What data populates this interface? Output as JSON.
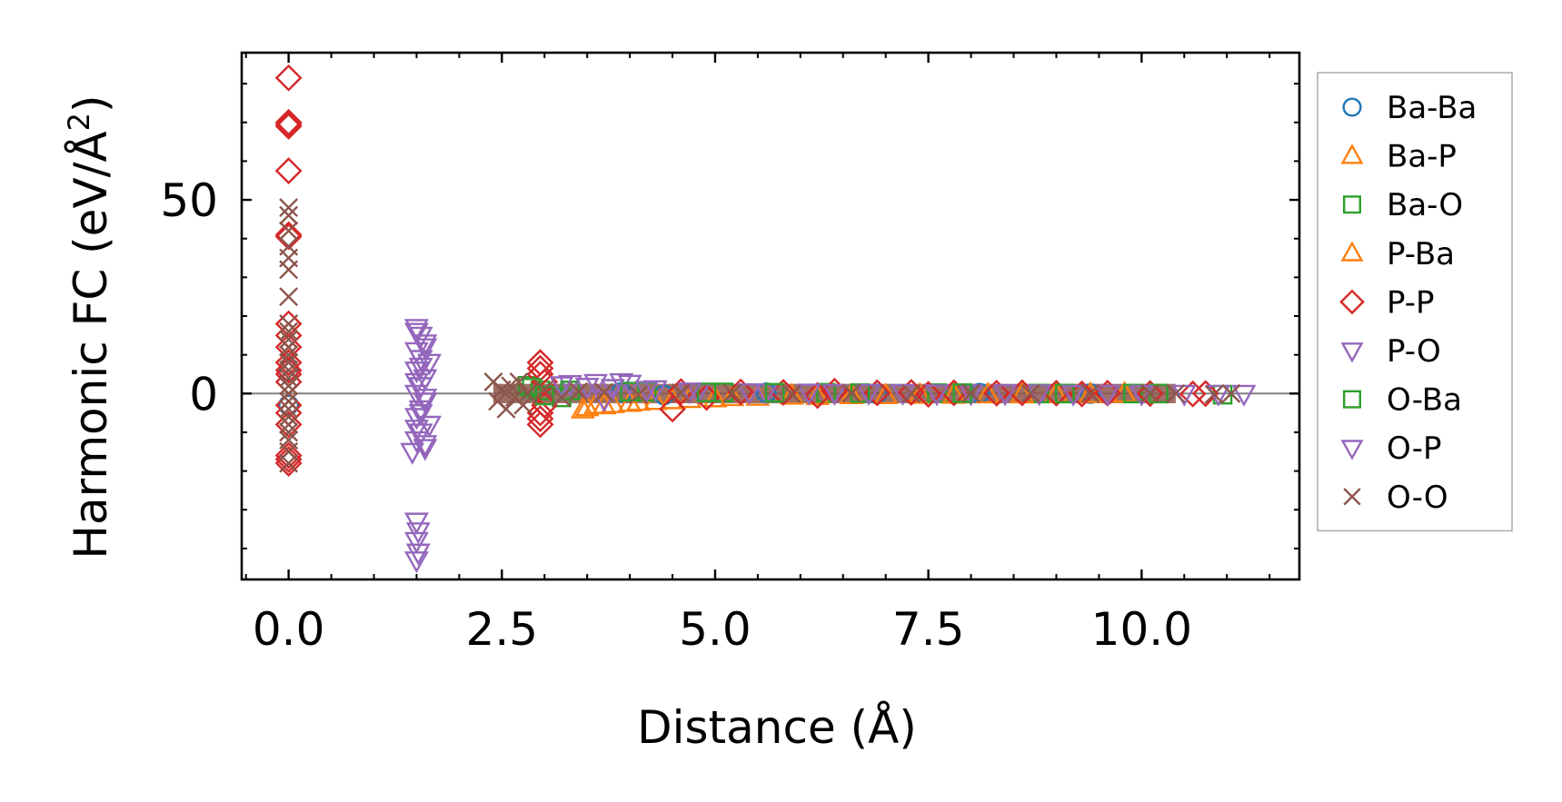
{
  "chart_data": {
    "type": "scatter",
    "title": "",
    "xlabel": "Distance (Å)",
    "ylabel": "Harmonic FC (eV/Å²)",
    "ylabel_main": "Harmonic FC (eV/Å",
    "ylabel_sup": "2",
    "ylabel_end": ")",
    "xlim": [
      -0.55,
      11.85
    ],
    "ylim": [
      -48,
      88
    ],
    "xticks": [
      0.0,
      2.5,
      5.0,
      7.5,
      10.0
    ],
    "xtick_labels": [
      "0.0",
      "2.5",
      "5.0",
      "7.5",
      "10.0"
    ],
    "yticks": [
      0,
      50
    ],
    "ytick_labels": [
      "0",
      "50"
    ],
    "zero_line": 0,
    "grid": false,
    "legend_position": "outside-right",
    "series": [
      {
        "name": "Ba-Ba",
        "marker": "circle",
        "color": "#1f77b4",
        "points": [
          [
            0.0,
            6
          ],
          [
            0.0,
            -3
          ],
          [
            3.9,
            0.3
          ],
          [
            4.4,
            -0.4
          ],
          [
            5.6,
            0.2
          ],
          [
            6.9,
            -0.1
          ],
          [
            8.1,
            0.1
          ],
          [
            9.4,
            0.0
          ]
        ]
      },
      {
        "name": "Ba-P",
        "marker": "triangle-up",
        "color": "#ff7f0e",
        "points": [
          [
            3.45,
            -4.2
          ],
          [
            3.6,
            -3.0
          ],
          [
            3.8,
            -2.8
          ],
          [
            4.0,
            -2.5
          ],
          [
            4.3,
            -2.0
          ],
          [
            4.7,
            -1.5
          ],
          [
            5.2,
            -1.0
          ],
          [
            5.9,
            -0.6
          ],
          [
            6.6,
            -0.5
          ],
          [
            7.4,
            -0.4
          ],
          [
            8.2,
            -0.3
          ],
          [
            9.0,
            -0.2
          ],
          [
            9.8,
            -0.1
          ]
        ]
      },
      {
        "name": "Ba-O",
        "marker": "square",
        "color": "#2ca02c",
        "points": [
          [
            2.8,
            2.0
          ],
          [
            2.95,
            0.8
          ],
          [
            3.2,
            -1.0
          ],
          [
            4.2,
            0.5
          ],
          [
            5.1,
            0.3
          ],
          [
            6.3,
            0.2
          ],
          [
            7.6,
            0.1
          ],
          [
            8.8,
            0.0
          ],
          [
            9.9,
            0.0
          ],
          [
            10.95,
            -0.3
          ]
        ]
      },
      {
        "name": "P-Ba",
        "marker": "triangle-up",
        "color": "#ff7f0e",
        "points": [
          [
            3.5,
            -3.6
          ],
          [
            3.7,
            -3.1
          ],
          [
            4.1,
            -2.2
          ],
          [
            4.5,
            -1.8
          ],
          [
            5.0,
            -1.3
          ],
          [
            5.5,
            -0.9
          ],
          [
            6.2,
            -0.7
          ],
          [
            7.0,
            -0.5
          ],
          [
            7.8,
            -0.4
          ],
          [
            8.6,
            -0.3
          ],
          [
            9.4,
            -0.2
          ]
        ]
      },
      {
        "name": "P-P",
        "marker": "diamond",
        "color": "#d62728",
        "points": [
          [
            0.0,
            81.5
          ],
          [
            0.0,
            70
          ],
          [
            0.0,
            69.5
          ],
          [
            0.0,
            69
          ],
          [
            0.0,
            57.5
          ],
          [
            0.0,
            41
          ],
          [
            0.0,
            40.5
          ],
          [
            0.0,
            18
          ],
          [
            0.0,
            15
          ],
          [
            0.0,
            12
          ],
          [
            0.0,
            8
          ],
          [
            0.0,
            6
          ],
          [
            0.0,
            5
          ],
          [
            0.0,
            3
          ],
          [
            0.0,
            -3
          ],
          [
            0.0,
            -5
          ],
          [
            0.0,
            -8
          ],
          [
            0.0,
            -16
          ],
          [
            0.0,
            -17
          ],
          [
            0.0,
            -18
          ],
          [
            2.95,
            8
          ],
          [
            2.95,
            6.5
          ],
          [
            2.95,
            5
          ],
          [
            2.95,
            -5
          ],
          [
            2.95,
            -6.5
          ],
          [
            2.95,
            -8
          ],
          [
            3.0,
            3
          ],
          [
            3.0,
            -3
          ],
          [
            4.5,
            -4
          ],
          [
            4.6,
            0.5
          ],
          [
            4.9,
            -1
          ],
          [
            5.3,
            0.4
          ],
          [
            5.8,
            0.3
          ],
          [
            6.2,
            -0.5
          ],
          [
            6.4,
            0.6
          ],
          [
            6.9,
            0.2
          ],
          [
            7.3,
            0.3
          ],
          [
            7.5,
            -0.2
          ],
          [
            7.8,
            0.2
          ],
          [
            8.3,
            0.1
          ],
          [
            8.6,
            0.2
          ],
          [
            9.0,
            0.1
          ],
          [
            9.3,
            -0.1
          ],
          [
            9.6,
            0.1
          ],
          [
            10.1,
            0.0
          ],
          [
            10.6,
            -0.1
          ],
          [
            10.75,
            0.0
          ]
        ]
      },
      {
        "name": "P-O",
        "marker": "triangle-down",
        "color": "#9467bd",
        "points": [
          [
            1.5,
            17
          ],
          [
            1.55,
            15
          ],
          [
            1.6,
            13
          ],
          [
            1.5,
            11
          ],
          [
            1.55,
            9
          ],
          [
            1.65,
            8
          ],
          [
            1.5,
            6
          ],
          [
            1.6,
            4
          ],
          [
            1.55,
            2
          ],
          [
            1.5,
            0
          ],
          [
            1.6,
            -2
          ],
          [
            1.55,
            -4
          ],
          [
            1.5,
            -6
          ],
          [
            1.65,
            -8
          ],
          [
            1.55,
            -10
          ],
          [
            1.5,
            -12
          ],
          [
            1.6,
            -14
          ],
          [
            1.45,
            -15
          ],
          [
            1.5,
            -33
          ],
          [
            1.52,
            -35.5
          ],
          [
            1.5,
            -38
          ],
          [
            1.52,
            -41
          ],
          [
            1.5,
            -43
          ],
          [
            3.3,
            2.5
          ],
          [
            3.6,
            2.8
          ],
          [
            3.9,
            3.0
          ],
          [
            4.0,
            2.6
          ],
          [
            3.7,
            -1.5
          ],
          [
            4.3,
            1.2
          ],
          [
            4.8,
            0.5
          ],
          [
            5.6,
            0.4
          ],
          [
            6.4,
            0.2
          ],
          [
            7.2,
            0.2
          ],
          [
            8.0,
            0.1
          ],
          [
            8.8,
            0.1
          ],
          [
            9.6,
            0.0
          ],
          [
            10.5,
            0.0
          ],
          [
            10.9,
            0.0
          ],
          [
            11.2,
            0.0
          ]
        ]
      },
      {
        "name": "O-Ba",
        "marker": "square",
        "color": "#2ca02c",
        "points": [
          [
            2.85,
            1.5
          ],
          [
            3.0,
            -0.5
          ],
          [
            3.3,
            0.8
          ],
          [
            4.0,
            0.5
          ],
          [
            4.9,
            0.3
          ],
          [
            5.7,
            0.2
          ],
          [
            6.7,
            0.1
          ],
          [
            7.9,
            0.1
          ],
          [
            9.1,
            0.0
          ],
          [
            10.2,
            0.0
          ]
        ]
      },
      {
        "name": "O-P",
        "marker": "triangle-down",
        "color": "#9467bd",
        "points": [
          [
            1.5,
            16
          ],
          [
            1.6,
            12
          ],
          [
            1.55,
            7
          ],
          [
            1.5,
            3
          ],
          [
            1.6,
            -1
          ],
          [
            1.55,
            -5
          ],
          [
            1.5,
            -9
          ],
          [
            1.6,
            -13
          ],
          [
            3.2,
            2.2
          ],
          [
            3.5,
            1.8
          ],
          [
            3.8,
            1.5
          ],
          [
            4.2,
            1.0
          ],
          [
            4.7,
            0.6
          ],
          [
            5.4,
            0.4
          ],
          [
            6.1,
            0.3
          ],
          [
            6.8,
            0.2
          ],
          [
            7.6,
            0.1
          ],
          [
            8.4,
            0.1
          ],
          [
            9.2,
            0.0
          ],
          [
            10.0,
            0.0
          ]
        ]
      },
      {
        "name": "O-O",
        "marker": "x",
        "color": "#8c564b",
        "points": [
          [
            0.0,
            48
          ],
          [
            0.0,
            46
          ],
          [
            0.0,
            42
          ],
          [
            0.0,
            38
          ],
          [
            0.0,
            35
          ],
          [
            0.0,
            32
          ],
          [
            0.0,
            25
          ],
          [
            0.0,
            18
          ],
          [
            0.0,
            16
          ],
          [
            0.0,
            14
          ],
          [
            0.0,
            12
          ],
          [
            0.0,
            10
          ],
          [
            0.0,
            8
          ],
          [
            0.0,
            6
          ],
          [
            0.0,
            4
          ],
          [
            0.0,
            2
          ],
          [
            0.0,
            0
          ],
          [
            0.0,
            -2
          ],
          [
            0.0,
            -4
          ],
          [
            0.0,
            -6
          ],
          [
            0.0,
            -8
          ],
          [
            0.0,
            -10
          ],
          [
            0.0,
            -12
          ],
          [
            0.0,
            -15
          ],
          [
            0.0,
            -18
          ],
          [
            2.4,
            3
          ],
          [
            2.45,
            -2
          ],
          [
            2.5,
            1
          ],
          [
            2.55,
            -4
          ],
          [
            2.6,
            2
          ],
          [
            2.65,
            -1
          ],
          [
            2.7,
            3
          ],
          [
            2.75,
            -3
          ],
          [
            2.8,
            0
          ],
          [
            3.0,
            1
          ],
          [
            3.2,
            -1
          ],
          [
            3.4,
            0.5
          ],
          [
            3.7,
            0.3
          ],
          [
            4.1,
            -0.3
          ],
          [
            4.6,
            0.2
          ],
          [
            5.2,
            0.1
          ],
          [
            5.9,
            -0.1
          ],
          [
            6.6,
            0.1
          ],
          [
            7.3,
            0.0
          ],
          [
            8.0,
            0.1
          ],
          [
            8.7,
            0.0
          ],
          [
            9.4,
            0.0
          ],
          [
            10.1,
            0.0
          ],
          [
            10.4,
            0.0
          ],
          [
            10.85,
            -0.2
          ],
          [
            11.05,
            0.0
          ]
        ]
      }
    ],
    "bands": [
      {
        "series": "O-O",
        "x_from": 2.4,
        "x_to": 10.4,
        "y_center": 0.0,
        "spread": 2.5
      }
    ]
  }
}
